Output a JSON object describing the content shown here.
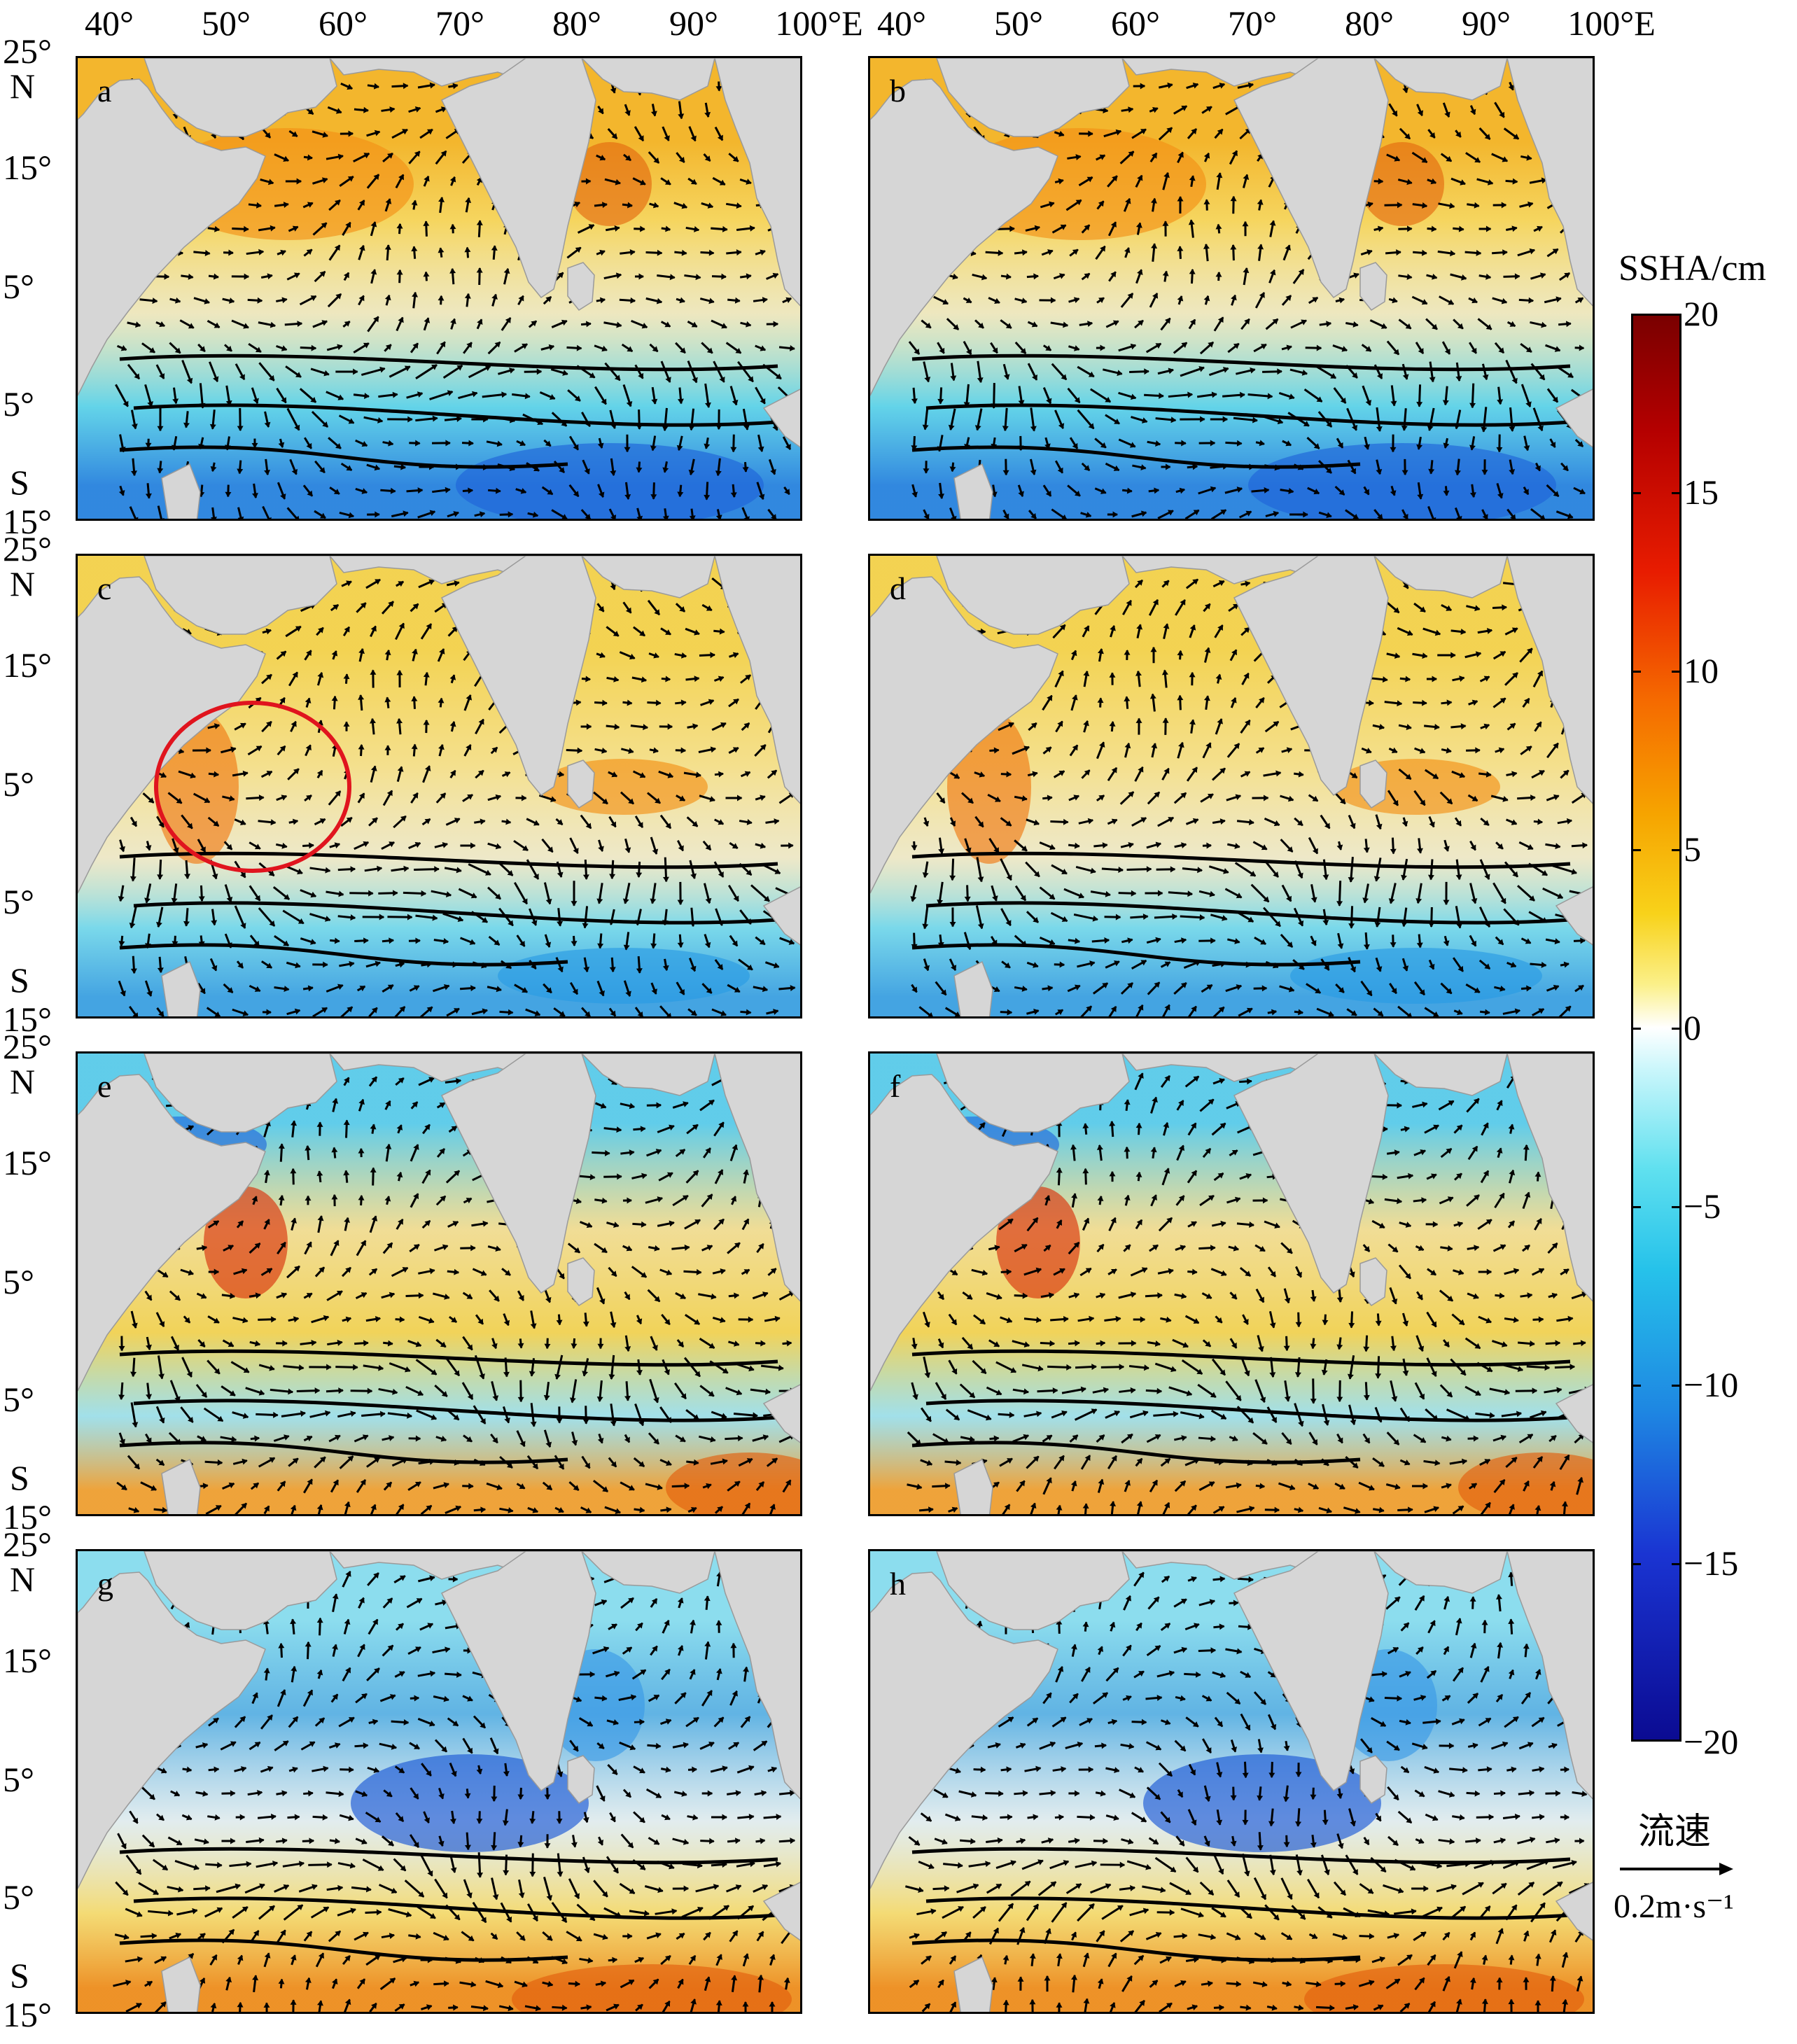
{
  "x_ticks": [
    "40°",
    "50°",
    "60°",
    "70°",
    "80°",
    "90°",
    "100°E"
  ],
  "y_ticks": [
    "25°",
    "N",
    "15°",
    "5°",
    "5°",
    "S",
    "15°"
  ],
  "panels": [
    {
      "id": "a",
      "label": "a",
      "pattern": "warm_north_cool_south",
      "highlight_circle": false
    },
    {
      "id": "b",
      "label": "b",
      "pattern": "warm_north_cool_south",
      "highlight_circle": false
    },
    {
      "id": "c",
      "label": "c",
      "pattern": "somali_eddy_warm",
      "highlight_circle": true
    },
    {
      "id": "d",
      "label": "d",
      "pattern": "somali_eddy_warm",
      "highlight_circle": false
    },
    {
      "id": "e",
      "label": "e",
      "pattern": "cool_north_warm_eddy",
      "highlight_circle": false
    },
    {
      "id": "f",
      "label": "f",
      "pattern": "cool_north_warm_eddy",
      "highlight_circle": false
    },
    {
      "id": "g",
      "label": "g",
      "pattern": "cool_north_warm_south",
      "highlight_circle": false
    },
    {
      "id": "h",
      "label": "h",
      "pattern": "cool_north_warm_south",
      "highlight_circle": false
    }
  ],
  "colorbar": {
    "title": "SSHA/cm",
    "ticks": [
      "20",
      "15",
      "10",
      "5",
      "0",
      "−5",
      "−10",
      "−15",
      "−20"
    ],
    "range": [
      -20,
      20
    ]
  },
  "vector_legend": {
    "title": "流速",
    "scale": "0.2m·s⁻¹"
  },
  "colors": {
    "land": "#d6d6d6",
    "circle": "#e0141e",
    "arrow": "#000000"
  }
}
